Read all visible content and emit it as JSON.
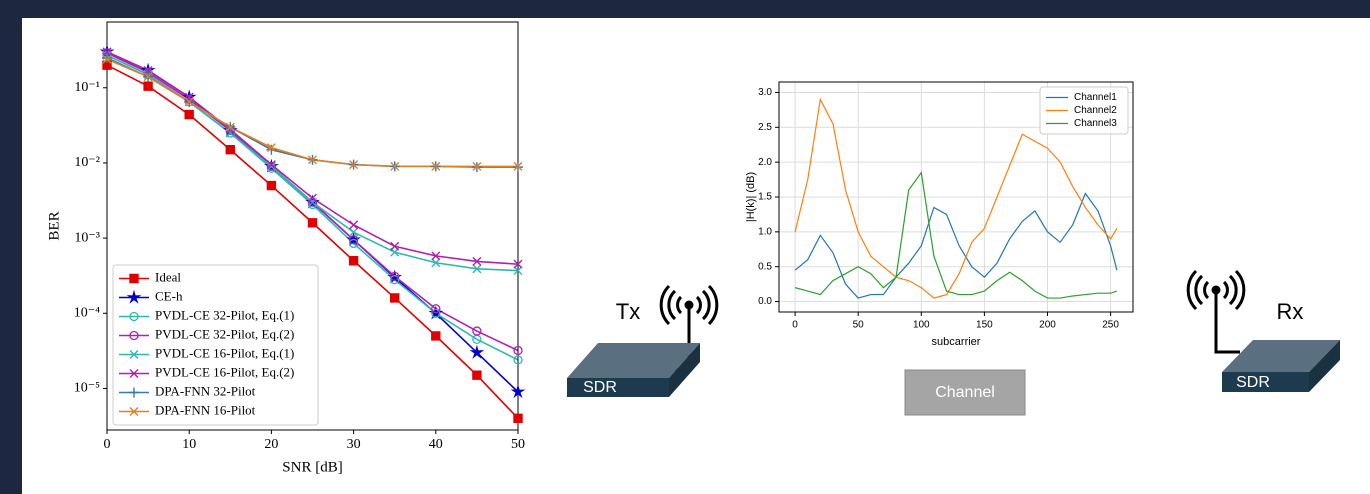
{
  "chart_data": [
    {
      "type": "line",
      "xlabel": "SNR [dB]",
      "ylabel": "BER",
      "log_y": true,
      "grid": false,
      "legend": "lower left",
      "x": [
        0,
        5,
        10,
        15,
        20,
        25,
        30,
        35,
        40,
        45,
        50
      ],
      "xlim": [
        0,
        50
      ],
      "xticks": [
        0,
        10,
        20,
        30,
        40,
        50
      ],
      "ylim": [
        2.8e-06,
        0.75
      ],
      "yticks": [
        {
          "value": 0.1,
          "label": "10⁻¹"
        },
        {
          "value": 0.01,
          "label": "10⁻²"
        },
        {
          "value": 0.001,
          "label": "10⁻³"
        },
        {
          "value": 0.0001,
          "label": "10⁻⁴"
        },
        {
          "value": 1e-05,
          "label": "10⁻⁵"
        }
      ],
      "series": [
        {
          "name": "Ideal",
          "color": "#e00000",
          "marker": "square",
          "values": [
            0.2,
            0.105,
            0.044,
            0.015,
            0.005,
            0.0016,
            0.0005,
            0.00016,
            5e-05,
            1.5e-05,
            4e-06
          ]
        },
        {
          "name": "CE-h",
          "color": "#0000cc",
          "marker": "star",
          "values": [
            0.3,
            0.17,
            0.075,
            0.027,
            0.009,
            0.003,
            0.00095,
            0.0003,
            0.0001,
            3e-05,
            9e-06
          ]
        },
        {
          "name": "PVDL-CE 32-Pilot, Eq.(1)",
          "color": "#2fb8b0",
          "marker": "circle",
          "values": [
            0.27,
            0.15,
            0.065,
            0.025,
            0.0085,
            0.0028,
            0.00085,
            0.00028,
            0.0001,
            4.5e-05,
            2.4e-05
          ]
        },
        {
          "name": "PVDL-CE 32-Pilot, Eq.(2)",
          "color": "#b020b0",
          "marker": "circle",
          "values": [
            0.29,
            0.16,
            0.07,
            0.027,
            0.009,
            0.003,
            0.00095,
            0.00031,
            0.000115,
            5.8e-05,
            3.2e-05
          ]
        },
        {
          "name": "PVDL-CE 16-Pilot, Eq.(1)",
          "color": "#2fb8b0",
          "marker": "x",
          "values": [
            0.27,
            0.15,
            0.065,
            0.025,
            0.009,
            0.003,
            0.0012,
            0.00065,
            0.00047,
            0.00039,
            0.00037
          ]
        },
        {
          "name": "PVDL-CE 16-Pilot, Eq.(2)",
          "color": "#b020b0",
          "marker": "x",
          "values": [
            0.3,
            0.17,
            0.075,
            0.028,
            0.0095,
            0.0034,
            0.0015,
            0.00078,
            0.00058,
            0.00049,
            0.00045
          ]
        },
        {
          "name": "DPA-FNN 32-Pilot",
          "color": "#3a78b0",
          "marker": "plus",
          "values": [
            0.25,
            0.14,
            0.065,
            0.03,
            0.015,
            0.011,
            0.0095,
            0.009,
            0.009,
            0.0088,
            0.0088
          ]
        },
        {
          "name": "DPA-FNN 16-Pilot",
          "color": "#e08020",
          "marker": "x",
          "values": [
            0.24,
            0.14,
            0.065,
            0.03,
            0.016,
            0.011,
            0.0095,
            0.009,
            0.009,
            0.009,
            0.009
          ]
        }
      ]
    },
    {
      "type": "line",
      "xlabel": "subcarrier",
      "ylabel": "|H(k)| (dB)",
      "log_y": false,
      "grid": true,
      "legend": "upper right",
      "x": [
        0,
        10,
        20,
        30,
        40,
        50,
        60,
        70,
        80,
        90,
        100,
        110,
        120,
        130,
        140,
        150,
        160,
        170,
        180,
        190,
        200,
        210,
        220,
        230,
        240,
        250,
        255
      ],
      "xlim": [
        -12.75,
        267.75
      ],
      "xticks": [
        0,
        50,
        100,
        150,
        200,
        250
      ],
      "ylim": [
        -0.15,
        3.15
      ],
      "yticks": [
        {
          "value": 0,
          "label": "0.0"
        },
        0.5,
        {
          "value": 1,
          "label": "1.0"
        },
        1.5,
        {
          "value": 2,
          "label": "2.0"
        },
        2.5,
        {
          "value": 3,
          "label": "3.0"
        }
      ],
      "series": [
        {
          "name": "Channel1",
          "color": "#1f77b4",
          "values": [
            0.45,
            0.6,
            0.95,
            0.7,
            0.25,
            0.05,
            0.1,
            0.1,
            0.35,
            0.55,
            0.8,
            1.35,
            1.25,
            0.8,
            0.5,
            0.35,
            0.55,
            0.9,
            1.15,
            1.3,
            1.0,
            0.85,
            1.1,
            1.55,
            1.3,
            0.8,
            0.45
          ]
        },
        {
          "name": "Channel2",
          "color": "#ff7f0e",
          "values": [
            1.0,
            1.75,
            2.9,
            2.55,
            1.6,
            1.0,
            0.65,
            0.5,
            0.35,
            0.3,
            0.2,
            0.05,
            0.1,
            0.4,
            0.85,
            1.05,
            1.5,
            1.95,
            2.4,
            2.3,
            2.2,
            2.0,
            1.65,
            1.35,
            1.1,
            0.9,
            1.05
          ]
        },
        {
          "name": "Channel3",
          "color": "#2ca02c",
          "values": [
            0.2,
            0.15,
            0.1,
            0.3,
            0.4,
            0.5,
            0.4,
            0.2,
            0.35,
            1.6,
            1.85,
            0.65,
            0.15,
            0.1,
            0.1,
            0.15,
            0.3,
            0.42,
            0.3,
            0.15,
            0.05,
            0.05,
            0.08,
            0.1,
            0.12,
            0.12,
            0.15
          ]
        }
      ]
    }
  ],
  "diagram": {
    "tx": "Tx",
    "rx": "Rx",
    "tx_device": "SDR",
    "rx_device": "SDR",
    "channel": "Channel"
  }
}
